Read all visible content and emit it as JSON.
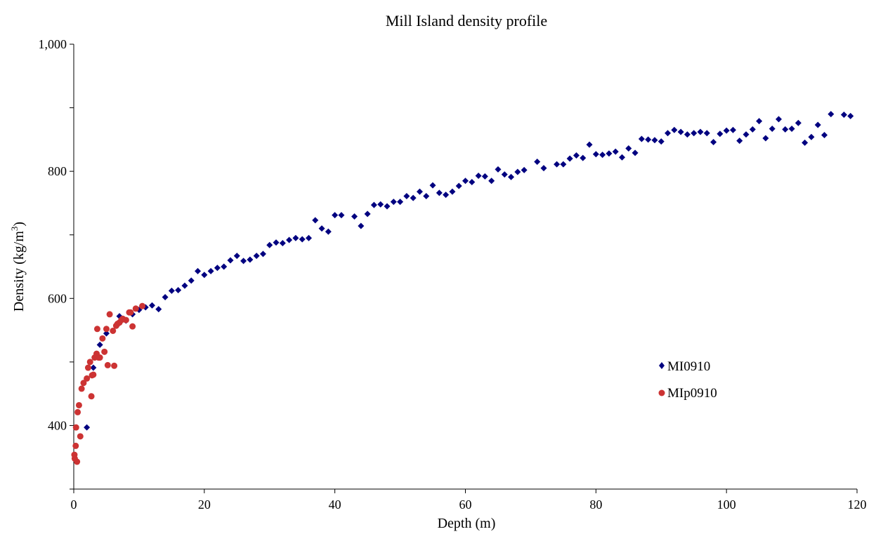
{
  "chart_data": {
    "type": "scatter",
    "title": "Mill Island density profile",
    "xlabel": "Depth (m)",
    "ylabel": "Density (kg/m",
    "ylabel_sup": "3",
    "ylabel_tail": ")",
    "xlim": [
      0,
      120
    ],
    "ylim": [
      300,
      1000
    ],
    "x_ticks": [
      0,
      20,
      40,
      60,
      80,
      100,
      120
    ],
    "x_tick_labels": [
      "0",
      "20",
      "40",
      "60",
      "80",
      "100",
      "120"
    ],
    "y_labeled_ticks": [
      400,
      600,
      800,
      1000
    ],
    "y_tick_labels": [
      "400",
      "600",
      "800",
      "1,000"
    ],
    "y_minor_ticks": [
      300,
      500,
      700,
      900
    ],
    "grid": false,
    "legend_position": "right",
    "series": [
      {
        "name": "MI0910",
        "marker": "diamond",
        "color": "#000080",
        "x": [
          2,
          3,
          4,
          5,
          6,
          7,
          8,
          9,
          10,
          11,
          12,
          13,
          14,
          15,
          16,
          17,
          18,
          19,
          20,
          21,
          22,
          23,
          24,
          25,
          26,
          27,
          28,
          29,
          30,
          31,
          32,
          33,
          34,
          35,
          36,
          37,
          38,
          39,
          40,
          41,
          43,
          44,
          45,
          46,
          47,
          48,
          49,
          50,
          51,
          52,
          53,
          54,
          55,
          56,
          57,
          58,
          59,
          60,
          61,
          62,
          63,
          64,
          65,
          66,
          67,
          68,
          69,
          71,
          72,
          74,
          75,
          76,
          77,
          78,
          79,
          80,
          81,
          82,
          83,
          84,
          85,
          86,
          87,
          88,
          89,
          90,
          91,
          92,
          93,
          94,
          95,
          96,
          97,
          98,
          99,
          100,
          101,
          102,
          103,
          104,
          105,
          106,
          107,
          108,
          109,
          110,
          111,
          112,
          113,
          114,
          115,
          116,
          118,
          119
        ],
        "y": [
          397,
          491,
          527,
          545,
          549,
          572,
          565,
          575,
          582,
          586,
          589,
          583,
          602,
          612,
          613,
          620,
          628,
          643,
          637,
          643,
          648,
          650,
          660,
          667,
          659,
          661,
          667,
          670,
          684,
          688,
          687,
          692,
          695,
          693,
          695,
          723,
          710,
          705,
          731,
          731,
          729,
          714,
          733,
          747,
          748,
          745,
          752,
          752,
          761,
          758,
          768,
          761,
          778,
          766,
          763,
          768,
          777,
          785,
          783,
          793,
          792,
          785,
          803,
          795,
          791,
          799,
          802,
          815,
          805,
          811,
          811,
          820,
          825,
          821,
          842,
          827,
          826,
          828,
          831,
          822,
          836,
          829,
          851,
          850,
          849,
          847,
          860,
          865,
          862,
          858,
          860,
          862,
          860,
          846,
          859,
          864,
          865,
          848,
          858,
          866,
          879,
          852,
          867,
          882,
          866,
          867,
          876,
          845,
          854,
          873,
          857,
          890,
          889,
          887
        ]
      },
      {
        "name": "MIp0910",
        "marker": "circle",
        "color": "#cc3333",
        "x": [
          0.1,
          0.15,
          0.3,
          0.35,
          0.5,
          0.6,
          0.8,
          1.0,
          1.2,
          1.5,
          2.0,
          2.2,
          2.5,
          2.7,
          2.8,
          3.0,
          3.2,
          3.5,
          3.6,
          3.8,
          4.0,
          4.4,
          4.7,
          5.0,
          5.2,
          5.5,
          6.0,
          6.2,
          6.5,
          6.7,
          7.0,
          7.3,
          7.5,
          8.0,
          8.5,
          8.7,
          9.0,
          9.5,
          10.5
        ],
        "y": [
          354,
          348,
          368,
          397,
          343,
          421,
          432,
          383,
          458,
          467,
          474,
          491,
          500,
          446,
          479,
          480,
          507,
          513,
          552,
          507,
          507,
          537,
          516,
          552,
          495,
          575,
          549,
          494,
          557,
          560,
          562,
          566,
          568,
          566,
          578,
          578,
          556,
          584,
          588
        ]
      }
    ]
  }
}
